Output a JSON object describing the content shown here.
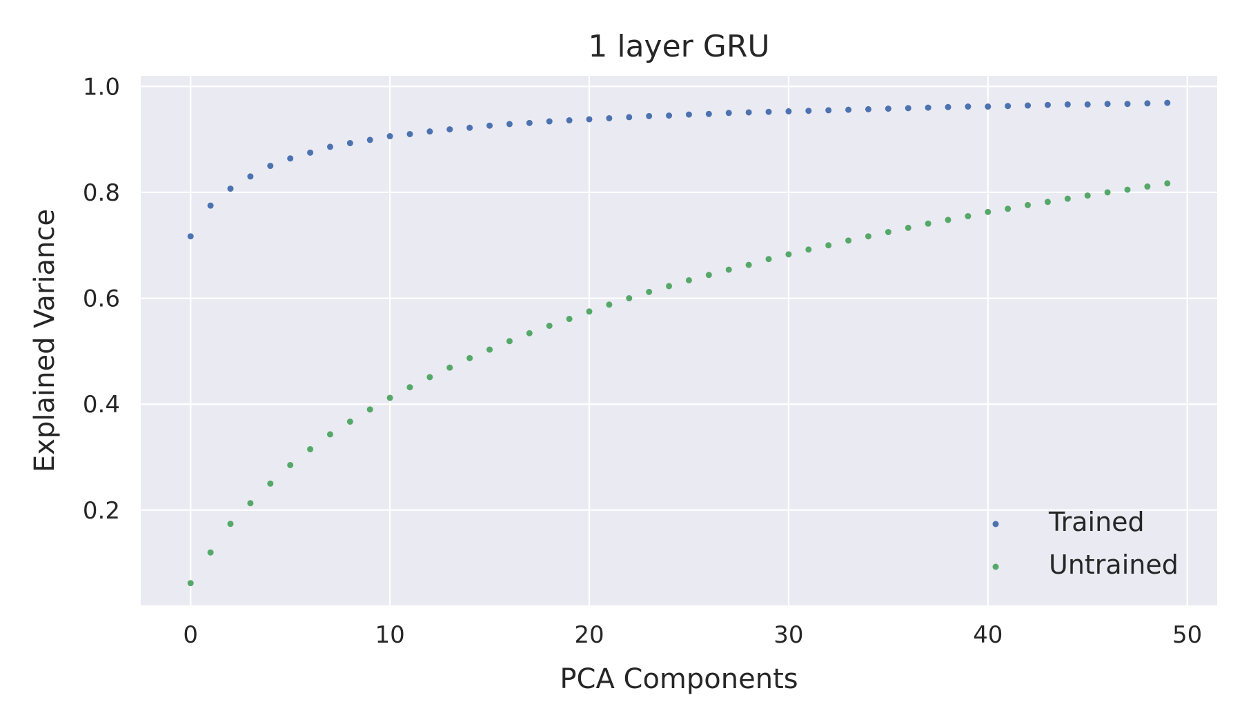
{
  "chart_data": {
    "type": "scatter",
    "title": "1 layer GRU",
    "xlabel": "PCA Components",
    "ylabel": "Explained Variance",
    "xlim": [
      -2.5,
      51.5
    ],
    "ylim": [
      0.02,
      1.02
    ],
    "xticks": [
      0,
      10,
      20,
      30,
      40,
      50
    ],
    "yticks": [
      0.2,
      0.4,
      0.6,
      0.8,
      1.0
    ],
    "xtick_labels": [
      "0",
      "10",
      "20",
      "30",
      "40",
      "50"
    ],
    "ytick_labels": [
      "0.2",
      "0.4",
      "0.6",
      "0.8",
      "1.0"
    ],
    "grid": true,
    "legend_position": "lower-right",
    "background_color": "#eaeaf2",
    "grid_color": "#ffffff",
    "x": [
      0,
      1,
      2,
      3,
      4,
      5,
      6,
      7,
      8,
      9,
      10,
      11,
      12,
      13,
      14,
      15,
      16,
      17,
      18,
      19,
      20,
      21,
      22,
      23,
      24,
      25,
      26,
      27,
      28,
      29,
      30,
      31,
      32,
      33,
      34,
      35,
      36,
      37,
      38,
      39,
      40,
      41,
      42,
      43,
      44,
      45,
      46,
      47,
      48,
      49
    ],
    "series": [
      {
        "name": "Trained",
        "color": "#4c72b0",
        "values": [
          0.717,
          0.775,
          0.807,
          0.83,
          0.85,
          0.864,
          0.875,
          0.886,
          0.893,
          0.899,
          0.906,
          0.91,
          0.915,
          0.919,
          0.922,
          0.926,
          0.929,
          0.931,
          0.934,
          0.936,
          0.938,
          0.94,
          0.942,
          0.944,
          0.945,
          0.947,
          0.948,
          0.95,
          0.951,
          0.952,
          0.953,
          0.954,
          0.955,
          0.956,
          0.957,
          0.958,
          0.959,
          0.96,
          0.961,
          0.962,
          0.962,
          0.963,
          0.964,
          0.965,
          0.966,
          0.966,
          0.967,
          0.967,
          0.968,
          0.969
        ]
      },
      {
        "name": "Untrained",
        "color": "#55a868",
        "values": [
          0.062,
          0.12,
          0.174,
          0.213,
          0.25,
          0.285,
          0.315,
          0.343,
          0.367,
          0.39,
          0.412,
          0.432,
          0.451,
          0.469,
          0.487,
          0.503,
          0.519,
          0.534,
          0.548,
          0.561,
          0.575,
          0.588,
          0.6,
          0.612,
          0.623,
          0.634,
          0.644,
          0.654,
          0.663,
          0.674,
          0.683,
          0.692,
          0.7,
          0.709,
          0.717,
          0.725,
          0.733,
          0.741,
          0.748,
          0.755,
          0.763,
          0.769,
          0.776,
          0.782,
          0.788,
          0.794,
          0.8,
          0.805,
          0.811,
          0.817
        ]
      }
    ]
  }
}
